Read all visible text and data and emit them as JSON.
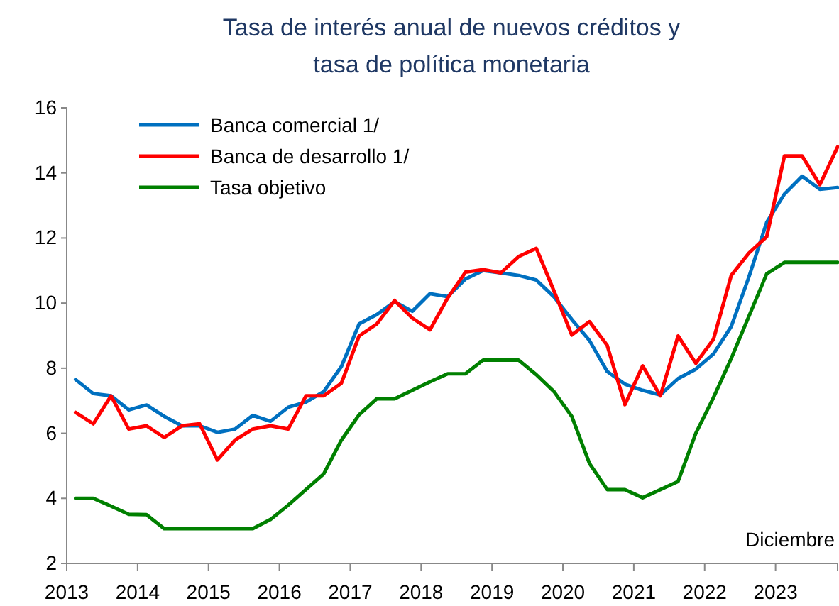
{
  "chart_data": {
    "type": "line",
    "title": "Tasa de interés anual de nuevos créditos y\ntasa de política monetaria",
    "x": [
      2013.125,
      2013.375,
      2013.625,
      2013.875,
      2014.125,
      2014.375,
      2014.625,
      2014.875,
      2015.125,
      2015.375,
      2015.625,
      2015.875,
      2016.125,
      2016.375,
      2016.625,
      2016.875,
      2017.125,
      2017.375,
      2017.625,
      2017.875,
      2018.125,
      2018.375,
      2018.625,
      2018.875,
      2019.125,
      2019.375,
      2019.625,
      2019.875,
      2020.125,
      2020.375,
      2020.625,
      2020.875,
      2021.125,
      2021.375,
      2021.625,
      2021.875,
      2022.125,
      2022.375,
      2022.625,
      2022.875,
      2023.125,
      2023.375,
      2023.625,
      2023.875
    ],
    "series": [
      {
        "name": "Banca comercial 1/",
        "color": "#0070c0",
        "values": [
          7.65,
          7.22,
          7.15,
          6.72,
          6.87,
          6.52,
          6.23,
          6.23,
          6.03,
          6.13,
          6.55,
          6.37,
          6.8,
          6.96,
          7.28,
          8.05,
          9.36,
          9.65,
          10.04,
          9.75,
          10.29,
          10.2,
          10.74,
          11.0,
          10.93,
          10.85,
          10.71,
          10.19,
          9.5,
          8.85,
          7.9,
          7.51,
          7.32,
          7.18,
          7.68,
          7.97,
          8.44,
          9.28,
          10.81,
          12.48,
          13.35,
          13.9,
          13.5,
          13.55
        ]
      },
      {
        "name": "Banca de desarrollo 1/",
        "color": "#ff0000",
        "values": [
          6.64,
          6.29,
          7.15,
          6.13,
          6.23,
          5.87,
          6.23,
          6.29,
          5.18,
          5.79,
          6.13,
          6.23,
          6.13,
          7.15,
          7.15,
          7.54,
          8.99,
          9.36,
          10.08,
          9.54,
          9.18,
          10.16,
          10.95,
          11.03,
          10.93,
          11.43,
          11.68,
          10.37,
          9.02,
          9.43,
          8.7,
          6.88,
          8.07,
          7.15,
          8.99,
          8.15,
          8.89,
          10.85,
          11.54,
          12.04,
          14.52,
          14.52,
          13.64,
          14.8
        ]
      },
      {
        "name": "Tasa objetivo",
        "color": "#008000",
        "values": [
          4.0,
          4.0,
          3.76,
          3.51,
          3.5,
          3.07,
          3.07,
          3.07,
          3.07,
          3.07,
          3.07,
          3.35,
          3.79,
          4.27,
          4.75,
          5.79,
          6.57,
          7.06,
          7.06,
          7.32,
          7.58,
          7.83,
          7.83,
          8.25,
          8.25,
          8.25,
          7.8,
          7.28,
          6.52,
          5.07,
          4.27,
          4.27,
          4.02,
          4.27,
          4.52,
          6.0,
          7.1,
          8.3,
          9.6,
          10.9,
          11.25,
          11.25,
          11.25,
          11.25
        ]
      }
    ],
    "xlim": [
      2013,
      2023.875
    ],
    "xticks": [
      2013,
      2014,
      2015,
      2016,
      2017,
      2018,
      2019,
      2020,
      2021,
      2022,
      2023
    ],
    "ylim": [
      2,
      16
    ],
    "yticks": [
      2,
      4,
      6,
      8,
      10,
      12,
      14,
      16
    ],
    "grid": false,
    "legend": "top left",
    "marker": "none",
    "line_style": "solid",
    "annotations": [
      "Diciembre"
    ]
  }
}
